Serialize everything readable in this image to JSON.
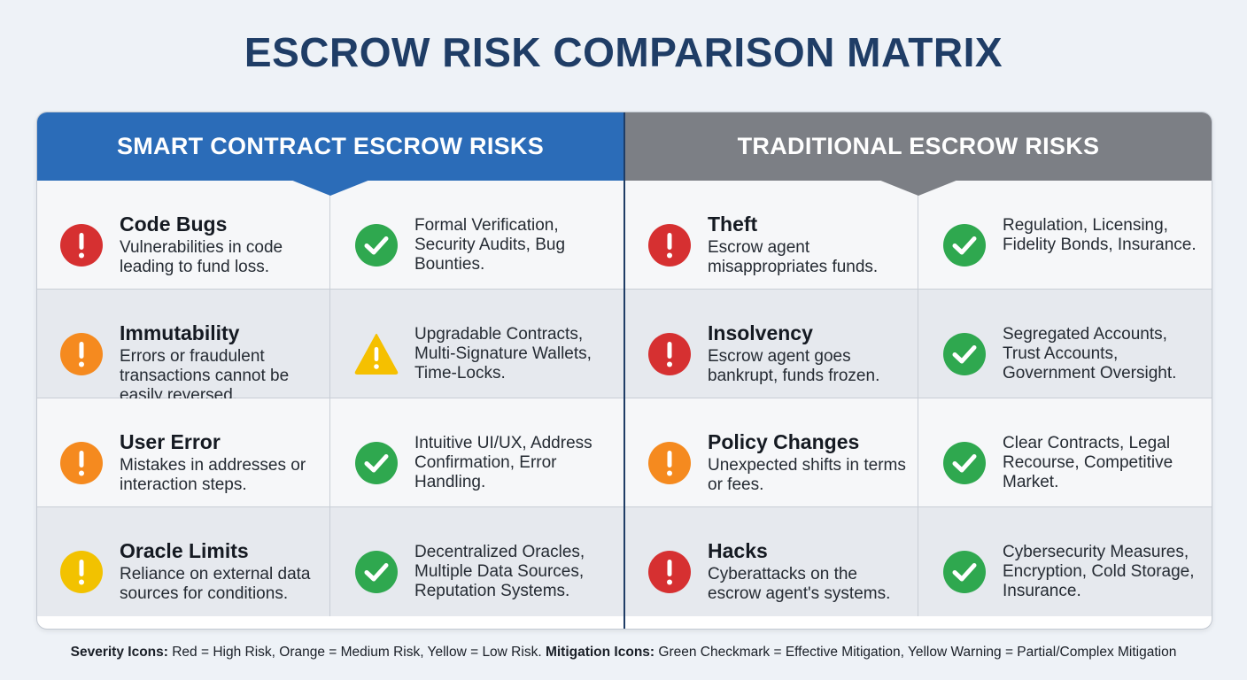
{
  "title": "ESCROW RISK COMPARISON MATRIX",
  "colors": {
    "smart_header": "#2b6cb8",
    "traditional_header": "#7c7f85",
    "high_risk": "#d63031",
    "medium_risk": "#f58a1f",
    "low_risk": "#f2c200",
    "effective": "#2fa84f",
    "partial": "#f5c000"
  },
  "smart": {
    "header": "SMART CONTRACT ESCROW RISKS",
    "rows": [
      {
        "title": "Code Bugs",
        "desc": "Vulnerabilities in code leading to fund loss.",
        "severity": "high",
        "severity_icon": "exclamation-icon",
        "mitigation": "Formal Verification, Security Audits, Bug Bounties.",
        "mitigation_type": "effective",
        "mitigation_icon": "checkmark-icon"
      },
      {
        "title": "Immutability",
        "desc": "Errors or fraudulent transactions cannot be easily reversed.",
        "severity": "medium",
        "severity_icon": "exclamation-icon",
        "mitigation": "Upgradable Contracts, Multi-Signature Wallets, Time-Locks.",
        "mitigation_type": "partial",
        "mitigation_icon": "warning-triangle-icon"
      },
      {
        "title": "User Error",
        "desc": "Mistakes in addresses or interaction steps.",
        "severity": "medium",
        "severity_icon": "exclamation-icon",
        "mitigation": "Intuitive UI/UX, Address Confirmation, Error Handling.",
        "mitigation_type": "effective",
        "mitigation_icon": "checkmark-icon"
      },
      {
        "title": "Oracle Limits",
        "desc": "Reliance on external data sources for conditions.",
        "severity": "low",
        "severity_icon": "exclamation-icon",
        "mitigation": "Decentralized Oracles, Multiple Data Sources, Reputation Systems.",
        "mitigation_type": "effective",
        "mitigation_icon": "checkmark-icon"
      }
    ]
  },
  "traditional": {
    "header": "TRADITIONAL ESCROW RISKS",
    "rows": [
      {
        "title": "Theft",
        "desc": "Escrow agent misappropriates funds.",
        "severity": "high",
        "severity_icon": "exclamation-icon",
        "mitigation": "Regulation, Licensing, Fidelity Bonds, Insurance.",
        "mitigation_type": "effective",
        "mitigation_icon": "checkmark-icon"
      },
      {
        "title": "Insolvency",
        "desc": "Escrow agent goes bankrupt, funds frozen.",
        "severity": "high",
        "severity_icon": "exclamation-icon",
        "mitigation": "Segregated Accounts, Trust Accounts, Government Oversight.",
        "mitigation_type": "effective",
        "mitigation_icon": "checkmark-icon"
      },
      {
        "title": "Policy Changes",
        "desc": "Unexpected shifts in terms or fees.",
        "severity": "medium",
        "severity_icon": "exclamation-icon",
        "mitigation": "Clear Contracts, Legal Recourse, Competitive Market.",
        "mitigation_type": "effective",
        "mitigation_icon": "checkmark-icon"
      },
      {
        "title": "Hacks",
        "desc": "Cyberattacks on the escrow agent's systems.",
        "severity": "high",
        "severity_icon": "exclamation-icon",
        "mitigation": "Cybersecurity Measures, Encryption, Cold Storage, Insurance.",
        "mitigation_type": "effective",
        "mitigation_icon": "checkmark-icon"
      }
    ]
  },
  "legend": {
    "severity_label": "Severity Icons:",
    "severity_text": "Red = High Risk, Orange = Medium Risk, Yellow = Low Risk.",
    "mitigation_label": "Mitigation Icons:",
    "mitigation_text": "Green Checkmark = Effective Mitigation, Yellow Warning = Partial/Complex Mitigation"
  }
}
